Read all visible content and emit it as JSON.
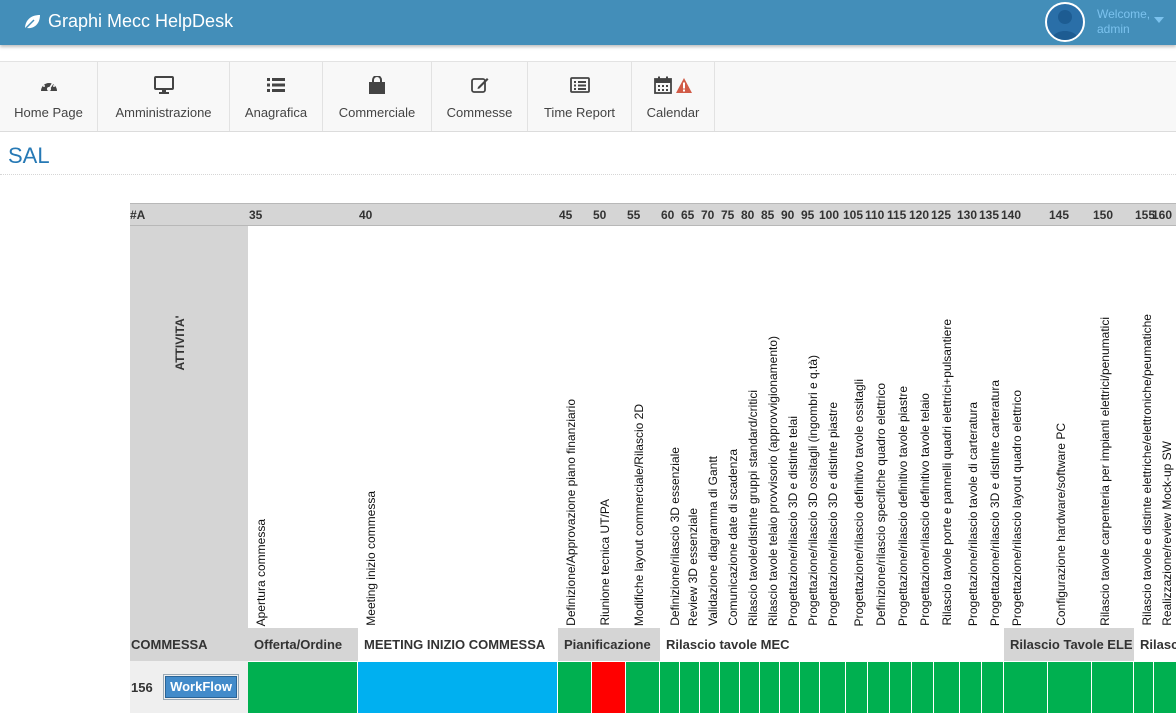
{
  "app": {
    "title": "Graphi Mecc HelpDesk"
  },
  "user": {
    "welcome": "Welcome,",
    "name": "admin"
  },
  "menu": [
    {
      "label": "Home Page",
      "icon": "dashboard-icon"
    },
    {
      "label": "Amministrazione",
      "icon": "monitor-icon"
    },
    {
      "label": "Anagrafica",
      "icon": "list-icon"
    },
    {
      "label": "Commerciale",
      "icon": "shopping-bag-icon"
    },
    {
      "label": "Commesse",
      "icon": "edit-icon"
    },
    {
      "label": "Time Report",
      "icon": "list-alt-icon"
    },
    {
      "label": "Calendar",
      "icon": "calendar-icon",
      "badge": "warning-icon"
    }
  ],
  "page": {
    "title": "SAL"
  },
  "grid": {
    "corner_label": "#A",
    "activity_header": "ATTIVITA'",
    "commessa_header": "COMMESSA",
    "columns": [
      {
        "num": "35",
        "label": "Apertura commessa"
      },
      {
        "num": "40",
        "label": "Meeting inizio commessa"
      },
      {
        "num": "45",
        "label": "Definizione/Approvazione piano finanziario"
      },
      {
        "num": "50",
        "label": "Riunione tecnica UT/PA"
      },
      {
        "num": "55",
        "label": "Modifiche layout commerciale/Rilascio 2D"
      },
      {
        "num": "60",
        "label": "Definizione/rilascio 3D essenziale"
      },
      {
        "num": "65",
        "label": "Review 3D essenziale"
      },
      {
        "num": "70",
        "label": "Validazione diagramma di Gantt"
      },
      {
        "num": "75",
        "label": "Comunicazione date di scadenza"
      },
      {
        "num": "80",
        "label": "Rilascio tavole/distinte gruppi standard/critici"
      },
      {
        "num": "85",
        "label": "Rilascio tavole telaio provvisorio (approvvigionamento)"
      },
      {
        "num": "90",
        "label": "Progettazione/rilascio 3D e distinte telai"
      },
      {
        "num": "95",
        "label": "Progettazione/rilascio 3D ossitagli (ingombri e q.tà)"
      },
      {
        "num": "100",
        "label": "Progettazione/rilascio 3D e distinte piastre"
      },
      {
        "num": "105",
        "label": "Progettazione/rilascio definitivo tavole ossitagli"
      },
      {
        "num": "110",
        "label": "Definizione/rilascio specifiche quadro elettrico"
      },
      {
        "num": "115",
        "label": "Progettazione/rilascio definitivo tavole piastre"
      },
      {
        "num": "120",
        "label": "Progettazione/rilascio definitivo tavole telaio"
      },
      {
        "num": "125",
        "label": "Rilascio tavole porte e pannelli quadri elettrici+pulsantiere"
      },
      {
        "num": "130",
        "label": "Progettazione/rilascio tavole di carteratura"
      },
      {
        "num": "135",
        "label": "Progettazione/rilascio 3D e distinte carteratura"
      },
      {
        "num": "140",
        "label": "Progettazione/rilascio layout quadro elettrico"
      },
      {
        "num": "145",
        "label": "Configurazione hardware/software PC"
      },
      {
        "num": "150",
        "label": "Rilascio tavole carpenteria per impianti elettrici/penumatici"
      },
      {
        "num": "155",
        "label": "Rilascio tavole e distinte elettriche/elettroniche/peumatiche"
      },
      {
        "num": "160",
        "label": "Realizzazione/review Mock-up SW"
      }
    ],
    "phases": [
      {
        "label": "Offerta/Ordine",
        "style": "grey"
      },
      {
        "label": "MEETING INIZIO COMMESSA",
        "style": "white"
      },
      {
        "label": "Pianificazione",
        "style": "grey"
      },
      {
        "label": "Rilascio tavole MEC",
        "style": "white"
      },
      {
        "label": "Rilascio Tavole ELE",
        "style": "grey"
      },
      {
        "label": "Rilascio",
        "style": "white"
      }
    ],
    "row": {
      "id": "156",
      "button": "WorkFlow",
      "statuses": [
        "green",
        "blue",
        "green",
        "red",
        "green",
        "green",
        "green",
        "green",
        "green",
        "green",
        "green",
        "green",
        "green",
        "green",
        "green",
        "green",
        "green",
        "green",
        "green",
        "green",
        "green",
        "green",
        "green",
        "green",
        "green",
        "green"
      ]
    }
  },
  "colors": {
    "topbar": "#438eb9",
    "green": "#00b050",
    "blue": "#00b0f0",
    "red": "#ff0000",
    "title": "#2679b5"
  }
}
